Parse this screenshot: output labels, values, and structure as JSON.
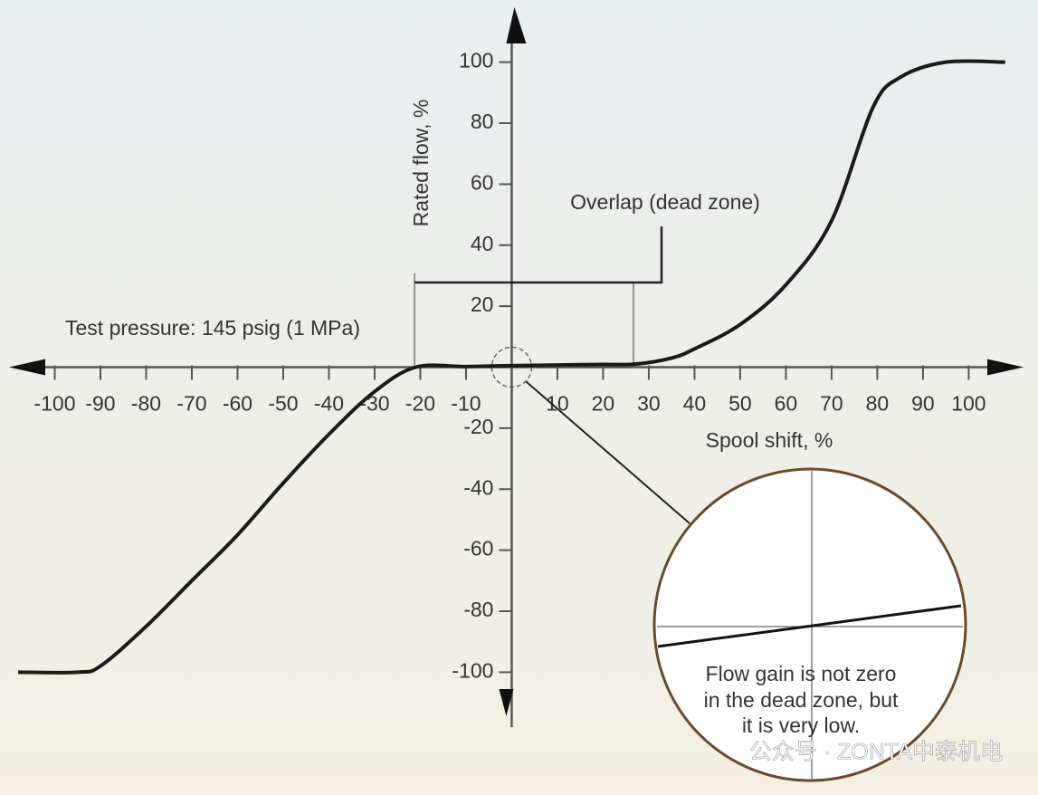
{
  "chart_data": {
    "type": "line",
    "x_label": "Spool shift, %",
    "y_label": "Rated flow, %",
    "annotations": [
      "Test pressure: 145 psig (1 MPa)",
      "Overlap (dead zone)"
    ],
    "inset_text": [
      "Flow gain is not zero",
      "in the dead zone, but",
      "it is very low."
    ],
    "watermark": "公众号 · ZONTA中泰机电",
    "x": [
      -108,
      -95,
      -90,
      -80,
      -70,
      -60,
      -50,
      -40,
      -30,
      -21,
      -10,
      0,
      10,
      20,
      27,
      35,
      40,
      50,
      60,
      70,
      79,
      85,
      95,
      108
    ],
    "values": [
      -100,
      -100,
      -98,
      -85,
      -70,
      -55,
      -38,
      -22,
      -8,
      0,
      0.2,
      0.5,
      0.7,
      0.9,
      1,
      3,
      6,
      14,
      27,
      48,
      85,
      95,
      100,
      100
    ],
    "color": "#1a1a1a",
    "xlim": [
      -110,
      112
    ],
    "ylim": [
      -118,
      118
    ],
    "xticks": [
      -100,
      -90,
      -80,
      -70,
      -60,
      -50,
      -40,
      -30,
      -20,
      -10,
      10,
      20,
      30,
      40,
      50,
      60,
      70,
      80,
      90,
      100
    ],
    "yticks": [
      100,
      80,
      60,
      40,
      20,
      -20,
      -40,
      -60,
      -80,
      -100
    ]
  }
}
